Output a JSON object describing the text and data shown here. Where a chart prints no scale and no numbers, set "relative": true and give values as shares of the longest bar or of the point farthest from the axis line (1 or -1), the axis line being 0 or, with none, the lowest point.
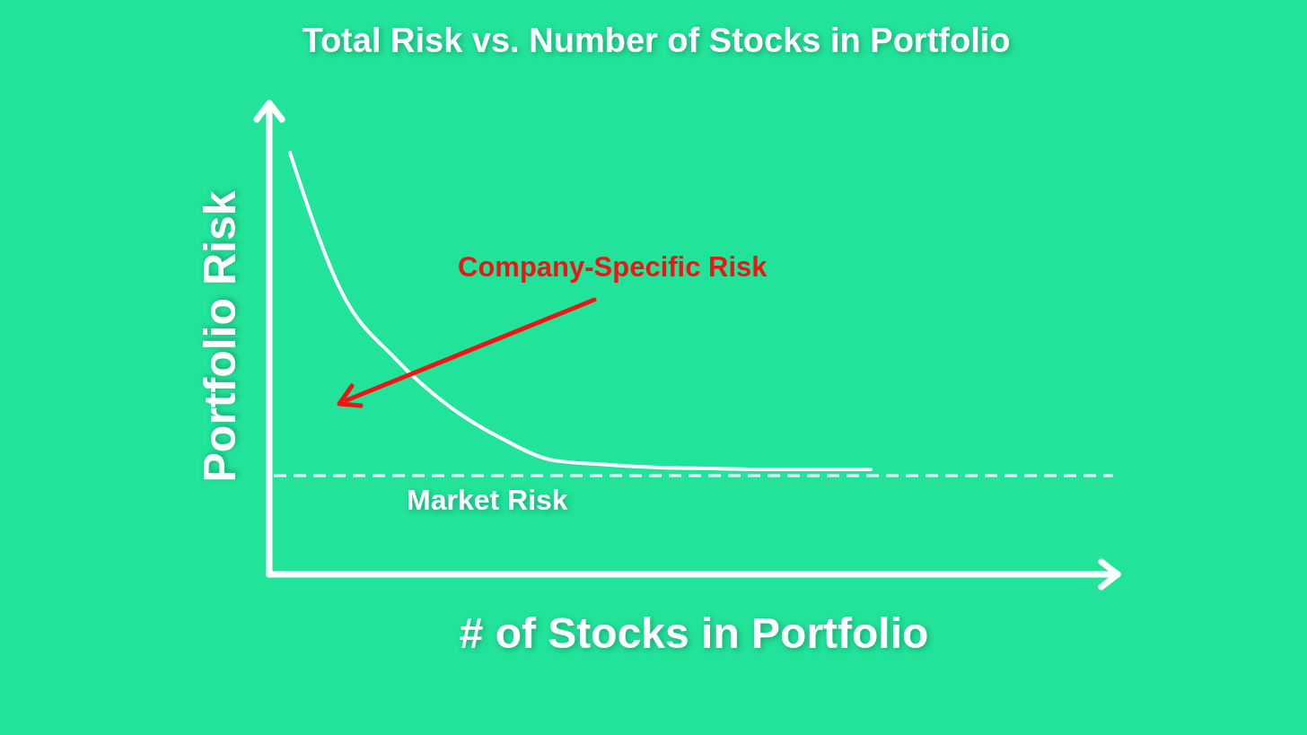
{
  "chart_data": {
    "type": "line",
    "title": "Total Risk vs. Number of Stocks in Portfolio",
    "xlabel": "# of Stocks in Portfolio",
    "ylabel": "Portfolio Risk",
    "relative": true,
    "categories": [
      null,
      null,
      null,
      null,
      null,
      null,
      null,
      null,
      null,
      null,
      null,
      null
    ],
    "series": [
      {
        "color": "#ffffff",
        "values": [
          1,
          0.664,
          0.511,
          0.4,
          0.323,
          0.27,
          0.26,
          0.253,
          0.251,
          0.249,
          0.249,
          0.249
        ]
      }
    ],
    "ref_lines": [
      {
        "axis": "y",
        "value": 0.234,
        "label": "Market Risk",
        "color": "#ffffff",
        "line_style": "dashed"
      }
    ],
    "annotations": [
      "Company-Specific Risk"
    ],
    "marker": "none"
  }
}
